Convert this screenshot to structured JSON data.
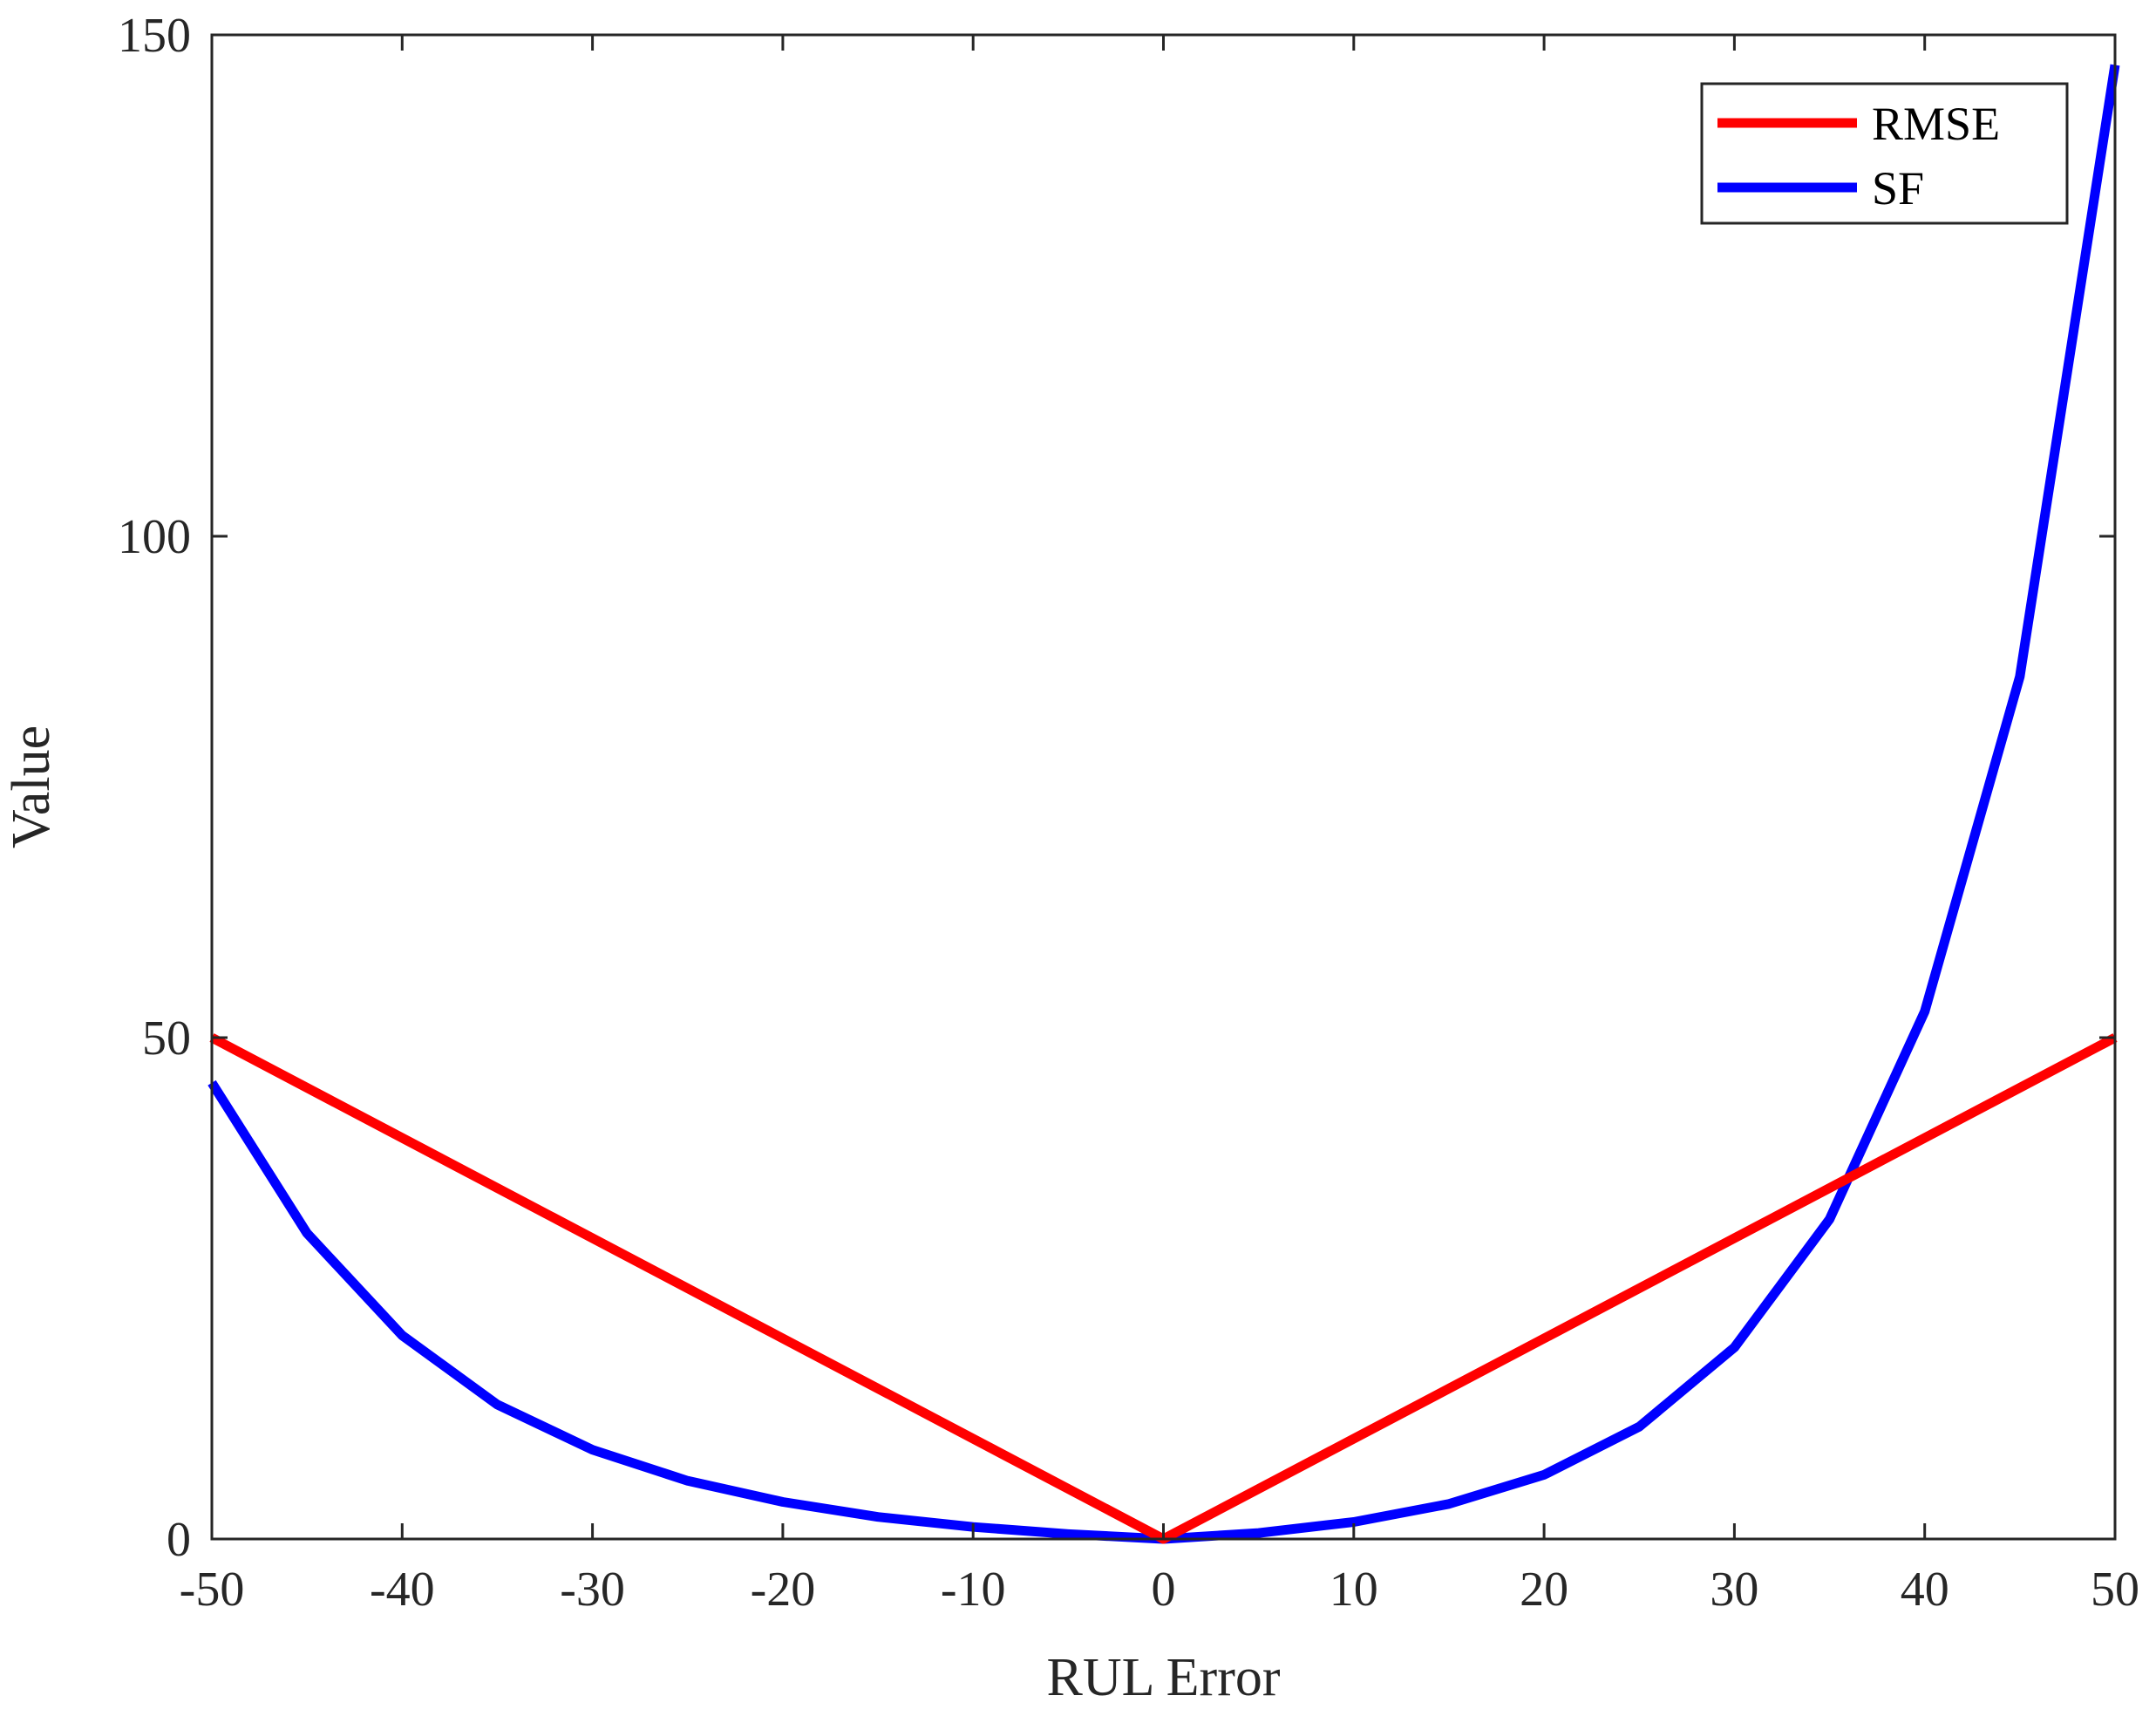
{
  "chart_data": {
    "type": "line",
    "title": "",
    "xlabel": "RUL Error",
    "ylabel": "Value",
    "xlim": [
      -50,
      50
    ],
    "ylim": [
      0,
      150
    ],
    "x_ticks": [
      -50,
      -40,
      -30,
      -20,
      -10,
      0,
      10,
      20,
      30,
      40,
      50
    ],
    "y_ticks": [
      0,
      50,
      100,
      150
    ],
    "grid": false,
    "legend_position": "top-right",
    "series": [
      {
        "name": "RMSE",
        "color": "#ff0000",
        "x": [
          -50,
          0,
          50
        ],
        "y": [
          50,
          0,
          50
        ]
      },
      {
        "name": "SF",
        "color": "#0000ff",
        "x": [
          -50,
          -45,
          -40,
          -35,
          -30,
          -25,
          -20,
          -15,
          -10,
          -5,
          0,
          5,
          10,
          15,
          20,
          25,
          30,
          35,
          40,
          45,
          50
        ],
        "y": [
          45.5,
          30.5,
          20.3,
          13.4,
          8.9,
          5.8,
          3.7,
          2.2,
          1.2,
          0.5,
          0,
          0.6,
          1.7,
          3.5,
          6.4,
          11.2,
          19.1,
          31.9,
          52.6,
          86.0,
          147.0
        ]
      }
    ]
  }
}
